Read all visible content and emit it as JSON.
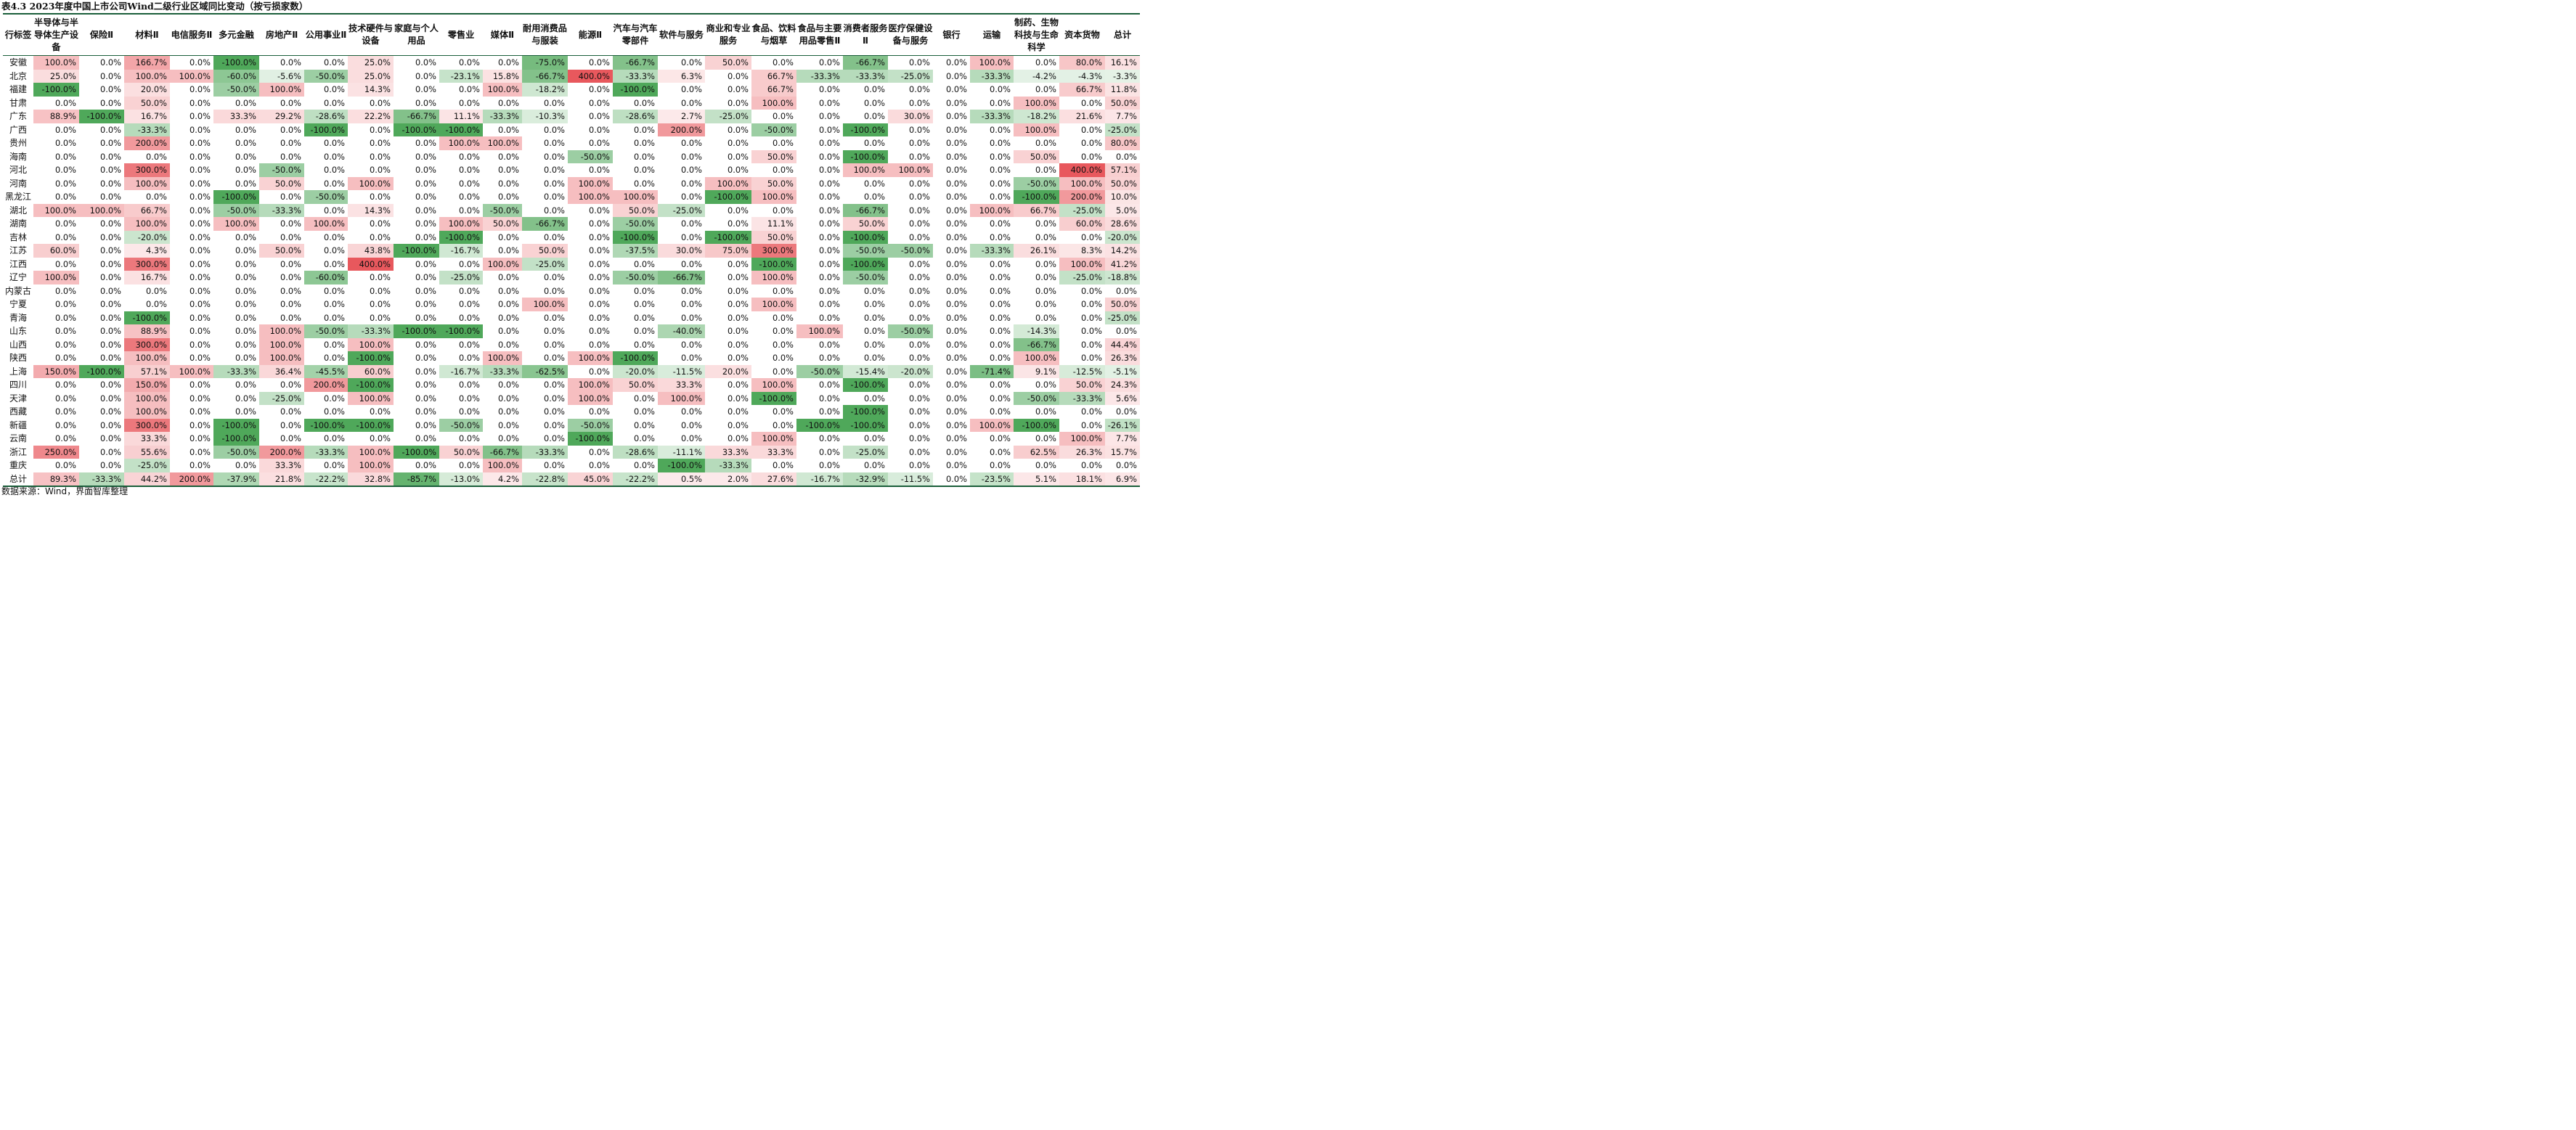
{
  "title": "表4.3 2023年度中国上市公司Wind二级行业区域同比变动（按亏损家数）",
  "source": "数据来源：Wind，界面智库整理",
  "colors": {
    "positive_max": "#e8585d",
    "negative_max": "#4fa85a",
    "neutral": "#ffffff",
    "border": "#1a5e3a"
  },
  "columns": [
    "行标签",
    "半导体与半导体生产设备",
    "保险Ⅱ",
    "材料Ⅱ",
    "电信服务Ⅱ",
    "多元金融",
    "房地产Ⅱ",
    "公用事业Ⅱ",
    "技术硬件与设备",
    "家庭与个人用品",
    "零售业",
    "媒体Ⅱ",
    "耐用消费品与服装",
    "能源Ⅱ",
    "汽车与汽车零部件",
    "软件与服务",
    "商业和专业服务",
    "食品、饮料与烟草",
    "食品与主要用品零售Ⅱ",
    "消费者服务Ⅱ",
    "医疗保健设备与服务",
    "银行",
    "运输",
    "制药、生物科技与生命科学",
    "资本货物",
    "总计"
  ],
  "rows": [
    {
      "label": "安徽",
      "values": [
        "100.0%",
        "0.0%",
        "166.7%",
        "0.0%",
        "-100.0%",
        "0.0%",
        "0.0%",
        "25.0%",
        "0.0%",
        "0.0%",
        "0.0%",
        "-75.0%",
        "0.0%",
        "-66.7%",
        "0.0%",
        "50.0%",
        "0.0%",
        "0.0%",
        "-66.7%",
        "0.0%",
        "0.0%",
        "100.0%",
        "0.0%",
        "80.0%",
        "16.1%"
      ]
    },
    {
      "label": "北京",
      "values": [
        "25.0%",
        "0.0%",
        "100.0%",
        "100.0%",
        "-60.0%",
        "-5.6%",
        "-50.0%",
        "25.0%",
        "0.0%",
        "-23.1%",
        "15.8%",
        "-66.7%",
        "400.0%",
        "-33.3%",
        "6.3%",
        "0.0%",
        "66.7%",
        "-33.3%",
        "-33.3%",
        "-25.0%",
        "0.0%",
        "-33.3%",
        "-4.2%",
        "-4.3%",
        "-3.3%"
      ]
    },
    {
      "label": "福建",
      "values": [
        "-100.0%",
        "0.0%",
        "20.0%",
        "0.0%",
        "-50.0%",
        "100.0%",
        "0.0%",
        "14.3%",
        "0.0%",
        "0.0%",
        "100.0%",
        "-18.2%",
        "0.0%",
        "-100.0%",
        "0.0%",
        "0.0%",
        "66.7%",
        "0.0%",
        "0.0%",
        "0.0%",
        "0.0%",
        "0.0%",
        "0.0%",
        "66.7%",
        "11.8%"
      ]
    },
    {
      "label": "甘肃",
      "values": [
        "0.0%",
        "0.0%",
        "50.0%",
        "0.0%",
        "0.0%",
        "0.0%",
        "0.0%",
        "0.0%",
        "0.0%",
        "0.0%",
        "0.0%",
        "0.0%",
        "0.0%",
        "0.0%",
        "0.0%",
        "0.0%",
        "100.0%",
        "0.0%",
        "0.0%",
        "0.0%",
        "0.0%",
        "0.0%",
        "100.0%",
        "0.0%",
        "50.0%"
      ]
    },
    {
      "label": "广东",
      "values": [
        "88.9%",
        "-100.0%",
        "16.7%",
        "0.0%",
        "33.3%",
        "29.2%",
        "-28.6%",
        "22.2%",
        "-66.7%",
        "11.1%",
        "-33.3%",
        "-10.3%",
        "0.0%",
        "-28.6%",
        "2.7%",
        "-25.0%",
        "0.0%",
        "0.0%",
        "0.0%",
        "30.0%",
        "0.0%",
        "-33.3%",
        "-18.2%",
        "21.6%",
        "7.7%"
      ]
    },
    {
      "label": "广西",
      "values": [
        "0.0%",
        "0.0%",
        "-33.3%",
        "0.0%",
        "0.0%",
        "0.0%",
        "-100.0%",
        "0.0%",
        "-100.0%",
        "-100.0%",
        "0.0%",
        "0.0%",
        "0.0%",
        "0.0%",
        "200.0%",
        "0.0%",
        "-50.0%",
        "0.0%",
        "-100.0%",
        "0.0%",
        "0.0%",
        "0.0%",
        "100.0%",
        "0.0%",
        "-25.0%"
      ]
    },
    {
      "label": "贵州",
      "values": [
        "0.0%",
        "0.0%",
        "200.0%",
        "0.0%",
        "0.0%",
        "0.0%",
        "0.0%",
        "0.0%",
        "0.0%",
        "100.0%",
        "100.0%",
        "0.0%",
        "0.0%",
        "0.0%",
        "0.0%",
        "0.0%",
        "0.0%",
        "0.0%",
        "0.0%",
        "0.0%",
        "0.0%",
        "0.0%",
        "0.0%",
        "0.0%",
        "80.0%"
      ]
    },
    {
      "label": "海南",
      "values": [
        "0.0%",
        "0.0%",
        "0.0%",
        "0.0%",
        "0.0%",
        "0.0%",
        "0.0%",
        "0.0%",
        "0.0%",
        "0.0%",
        "0.0%",
        "0.0%",
        "-50.0%",
        "0.0%",
        "0.0%",
        "0.0%",
        "50.0%",
        "0.0%",
        "-100.0%",
        "0.0%",
        "0.0%",
        "0.0%",
        "50.0%",
        "0.0%",
        "0.0%"
      ]
    },
    {
      "label": "河北",
      "values": [
        "0.0%",
        "0.0%",
        "300.0%",
        "0.0%",
        "0.0%",
        "-50.0%",
        "0.0%",
        "0.0%",
        "0.0%",
        "0.0%",
        "0.0%",
        "0.0%",
        "0.0%",
        "0.0%",
        "0.0%",
        "0.0%",
        "0.0%",
        "0.0%",
        "100.0%",
        "100.0%",
        "0.0%",
        "0.0%",
        "0.0%",
        "400.0%",
        "57.1%"
      ]
    },
    {
      "label": "河南",
      "values": [
        "0.0%",
        "0.0%",
        "100.0%",
        "0.0%",
        "0.0%",
        "50.0%",
        "0.0%",
        "100.0%",
        "0.0%",
        "0.0%",
        "0.0%",
        "0.0%",
        "100.0%",
        "0.0%",
        "0.0%",
        "100.0%",
        "50.0%",
        "0.0%",
        "0.0%",
        "0.0%",
        "0.0%",
        "0.0%",
        "-50.0%",
        "100.0%",
        "50.0%"
      ]
    },
    {
      "label": "黑龙江",
      "values": [
        "0.0%",
        "0.0%",
        "0.0%",
        "0.0%",
        "-100.0%",
        "0.0%",
        "-50.0%",
        "0.0%",
        "0.0%",
        "0.0%",
        "0.0%",
        "0.0%",
        "100.0%",
        "100.0%",
        "0.0%",
        "-100.0%",
        "100.0%",
        "0.0%",
        "0.0%",
        "0.0%",
        "0.0%",
        "0.0%",
        "-100.0%",
        "200.0%",
        "10.0%"
      ]
    },
    {
      "label": "湖北",
      "values": [
        "100.0%",
        "100.0%",
        "66.7%",
        "0.0%",
        "-50.0%",
        "-33.3%",
        "0.0%",
        "14.3%",
        "0.0%",
        "0.0%",
        "-50.0%",
        "0.0%",
        "0.0%",
        "50.0%",
        "-25.0%",
        "0.0%",
        "0.0%",
        "0.0%",
        "-66.7%",
        "0.0%",
        "0.0%",
        "100.0%",
        "66.7%",
        "-25.0%",
        "5.0%"
      ]
    },
    {
      "label": "湖南",
      "values": [
        "0.0%",
        "0.0%",
        "100.0%",
        "0.0%",
        "100.0%",
        "0.0%",
        "100.0%",
        "0.0%",
        "0.0%",
        "100.0%",
        "50.0%",
        "-66.7%",
        "0.0%",
        "-50.0%",
        "0.0%",
        "0.0%",
        "11.1%",
        "0.0%",
        "50.0%",
        "0.0%",
        "0.0%",
        "0.0%",
        "0.0%",
        "60.0%",
        "28.6%"
      ]
    },
    {
      "label": "吉林",
      "values": [
        "0.0%",
        "0.0%",
        "-20.0%",
        "0.0%",
        "0.0%",
        "0.0%",
        "0.0%",
        "0.0%",
        "0.0%",
        "-100.0%",
        "0.0%",
        "0.0%",
        "0.0%",
        "-100.0%",
        "0.0%",
        "-100.0%",
        "50.0%",
        "0.0%",
        "-100.0%",
        "0.0%",
        "0.0%",
        "0.0%",
        "0.0%",
        "0.0%",
        "-20.0%"
      ]
    },
    {
      "label": "江苏",
      "values": [
        "60.0%",
        "0.0%",
        "4.3%",
        "0.0%",
        "0.0%",
        "50.0%",
        "0.0%",
        "43.8%",
        "-100.0%",
        "-16.7%",
        "0.0%",
        "50.0%",
        "0.0%",
        "-37.5%",
        "30.0%",
        "75.0%",
        "300.0%",
        "0.0%",
        "-50.0%",
        "-50.0%",
        "0.0%",
        "-33.3%",
        "26.1%",
        "8.3%",
        "14.2%"
      ]
    },
    {
      "label": "江西",
      "values": [
        "0.0%",
        "0.0%",
        "300.0%",
        "0.0%",
        "0.0%",
        "0.0%",
        "0.0%",
        "400.0%",
        "0.0%",
        "0.0%",
        "100.0%",
        "-25.0%",
        "0.0%",
        "0.0%",
        "0.0%",
        "0.0%",
        "-100.0%",
        "0.0%",
        "-100.0%",
        "0.0%",
        "0.0%",
        "0.0%",
        "0.0%",
        "100.0%",
        "41.2%"
      ]
    },
    {
      "label": "辽宁",
      "values": [
        "100.0%",
        "0.0%",
        "16.7%",
        "0.0%",
        "0.0%",
        "0.0%",
        "-60.0%",
        "0.0%",
        "0.0%",
        "-25.0%",
        "0.0%",
        "0.0%",
        "0.0%",
        "-50.0%",
        "-66.7%",
        "0.0%",
        "100.0%",
        "0.0%",
        "-50.0%",
        "0.0%",
        "0.0%",
        "0.0%",
        "0.0%",
        "-25.0%",
        "-18.8%"
      ]
    },
    {
      "label": "内蒙古",
      "values": [
        "0.0%",
        "0.0%",
        "0.0%",
        "0.0%",
        "0.0%",
        "0.0%",
        "0.0%",
        "0.0%",
        "0.0%",
        "0.0%",
        "0.0%",
        "0.0%",
        "0.0%",
        "0.0%",
        "0.0%",
        "0.0%",
        "0.0%",
        "0.0%",
        "0.0%",
        "0.0%",
        "0.0%",
        "0.0%",
        "0.0%",
        "0.0%",
        "0.0%"
      ]
    },
    {
      "label": "宁夏",
      "values": [
        "0.0%",
        "0.0%",
        "0.0%",
        "0.0%",
        "0.0%",
        "0.0%",
        "0.0%",
        "0.0%",
        "0.0%",
        "0.0%",
        "0.0%",
        "100.0%",
        "0.0%",
        "0.0%",
        "0.0%",
        "0.0%",
        "100.0%",
        "0.0%",
        "0.0%",
        "0.0%",
        "0.0%",
        "0.0%",
        "0.0%",
        "0.0%",
        "50.0%"
      ]
    },
    {
      "label": "青海",
      "values": [
        "0.0%",
        "0.0%",
        "-100.0%",
        "0.0%",
        "0.0%",
        "0.0%",
        "0.0%",
        "0.0%",
        "0.0%",
        "0.0%",
        "0.0%",
        "0.0%",
        "0.0%",
        "0.0%",
        "0.0%",
        "0.0%",
        "0.0%",
        "0.0%",
        "0.0%",
        "0.0%",
        "0.0%",
        "0.0%",
        "0.0%",
        "0.0%",
        "-25.0%"
      ]
    },
    {
      "label": "山东",
      "values": [
        "0.0%",
        "0.0%",
        "88.9%",
        "0.0%",
        "0.0%",
        "100.0%",
        "-50.0%",
        "-33.3%",
        "-100.0%",
        "-100.0%",
        "0.0%",
        "0.0%",
        "0.0%",
        "0.0%",
        "-40.0%",
        "0.0%",
        "0.0%",
        "100.0%",
        "0.0%",
        "-50.0%",
        "0.0%",
        "0.0%",
        "-14.3%",
        "0.0%",
        "0.0%"
      ]
    },
    {
      "label": "山西",
      "values": [
        "0.0%",
        "0.0%",
        "300.0%",
        "0.0%",
        "0.0%",
        "100.0%",
        "0.0%",
        "100.0%",
        "0.0%",
        "0.0%",
        "0.0%",
        "0.0%",
        "0.0%",
        "0.0%",
        "0.0%",
        "0.0%",
        "0.0%",
        "0.0%",
        "0.0%",
        "0.0%",
        "0.0%",
        "0.0%",
        "-66.7%",
        "0.0%",
        "44.4%"
      ]
    },
    {
      "label": "陕西",
      "values": [
        "0.0%",
        "0.0%",
        "100.0%",
        "0.0%",
        "0.0%",
        "100.0%",
        "0.0%",
        "-100.0%",
        "0.0%",
        "0.0%",
        "100.0%",
        "0.0%",
        "100.0%",
        "-100.0%",
        "0.0%",
        "0.0%",
        "0.0%",
        "0.0%",
        "0.0%",
        "0.0%",
        "0.0%",
        "0.0%",
        "100.0%",
        "0.0%",
        "26.3%"
      ]
    },
    {
      "label": "上海",
      "values": [
        "150.0%",
        "-100.0%",
        "57.1%",
        "100.0%",
        "-33.3%",
        "36.4%",
        "-45.5%",
        "60.0%",
        "0.0%",
        "-16.7%",
        "-33.3%",
        "-62.5%",
        "0.0%",
        "-20.0%",
        "-11.5%",
        "20.0%",
        "0.0%",
        "-50.0%",
        "-15.4%",
        "-20.0%",
        "0.0%",
        "-71.4%",
        "9.1%",
        "-12.5%",
        "-5.1%"
      ]
    },
    {
      "label": "四川",
      "values": [
        "0.0%",
        "0.0%",
        "150.0%",
        "0.0%",
        "0.0%",
        "0.0%",
        "200.0%",
        "-100.0%",
        "0.0%",
        "0.0%",
        "0.0%",
        "0.0%",
        "100.0%",
        "50.0%",
        "33.3%",
        "0.0%",
        "100.0%",
        "0.0%",
        "-100.0%",
        "0.0%",
        "0.0%",
        "0.0%",
        "0.0%",
        "50.0%",
        "24.3%"
      ]
    },
    {
      "label": "天津",
      "values": [
        "0.0%",
        "0.0%",
        "100.0%",
        "0.0%",
        "0.0%",
        "-25.0%",
        "0.0%",
        "100.0%",
        "0.0%",
        "0.0%",
        "0.0%",
        "0.0%",
        "100.0%",
        "0.0%",
        "100.0%",
        "0.0%",
        "-100.0%",
        "0.0%",
        "0.0%",
        "0.0%",
        "0.0%",
        "0.0%",
        "-50.0%",
        "-33.3%",
        "5.6%"
      ]
    },
    {
      "label": "西藏",
      "values": [
        "0.0%",
        "0.0%",
        "100.0%",
        "0.0%",
        "0.0%",
        "0.0%",
        "0.0%",
        "0.0%",
        "0.0%",
        "0.0%",
        "0.0%",
        "0.0%",
        "0.0%",
        "0.0%",
        "0.0%",
        "0.0%",
        "0.0%",
        "0.0%",
        "-100.0%",
        "0.0%",
        "0.0%",
        "0.0%",
        "0.0%",
        "0.0%",
        "0.0%"
      ]
    },
    {
      "label": "新疆",
      "values": [
        "0.0%",
        "0.0%",
        "300.0%",
        "0.0%",
        "-100.0%",
        "0.0%",
        "-100.0%",
        "-100.0%",
        "0.0%",
        "-50.0%",
        "0.0%",
        "0.0%",
        "-50.0%",
        "0.0%",
        "0.0%",
        "0.0%",
        "0.0%",
        "-100.0%",
        "-100.0%",
        "0.0%",
        "0.0%",
        "100.0%",
        "-100.0%",
        "0.0%",
        "-26.1%"
      ]
    },
    {
      "label": "云南",
      "values": [
        "0.0%",
        "0.0%",
        "33.3%",
        "0.0%",
        "-100.0%",
        "0.0%",
        "0.0%",
        "0.0%",
        "0.0%",
        "0.0%",
        "0.0%",
        "0.0%",
        "-100.0%",
        "0.0%",
        "0.0%",
        "0.0%",
        "100.0%",
        "0.0%",
        "0.0%",
        "0.0%",
        "0.0%",
        "0.0%",
        "0.0%",
        "100.0%",
        "7.7%"
      ]
    },
    {
      "label": "浙江",
      "values": [
        "250.0%",
        "0.0%",
        "55.6%",
        "0.0%",
        "-50.0%",
        "200.0%",
        "-33.3%",
        "100.0%",
        "-100.0%",
        "50.0%",
        "-66.7%",
        "-33.3%",
        "0.0%",
        "-28.6%",
        "-11.1%",
        "33.3%",
        "33.3%",
        "0.0%",
        "-25.0%",
        "0.0%",
        "0.0%",
        "0.0%",
        "62.5%",
        "26.3%",
        "15.7%"
      ]
    },
    {
      "label": "重庆",
      "values": [
        "0.0%",
        "0.0%",
        "-25.0%",
        "0.0%",
        "0.0%",
        "33.3%",
        "0.0%",
        "100.0%",
        "0.0%",
        "0.0%",
        "100.0%",
        "0.0%",
        "0.0%",
        "0.0%",
        "-100.0%",
        "-33.3%",
        "0.0%",
        "0.0%",
        "0.0%",
        "0.0%",
        "0.0%",
        "0.0%",
        "0.0%",
        "0.0%",
        "0.0%"
      ]
    },
    {
      "label": "总计",
      "values": [
        "89.3%",
        "-33.3%",
        "44.2%",
        "200.0%",
        "-37.9%",
        "21.8%",
        "-22.2%",
        "32.8%",
        "-85.7%",
        "-13.0%",
        "4.2%",
        "-22.8%",
        "45.0%",
        "-22.2%",
        "0.5%",
        "2.0%",
        "27.6%",
        "-16.7%",
        "-32.9%",
        "-11.5%",
        "0.0%",
        "-23.5%",
        "5.1%",
        "18.1%",
        "6.9%"
      ]
    }
  ]
}
